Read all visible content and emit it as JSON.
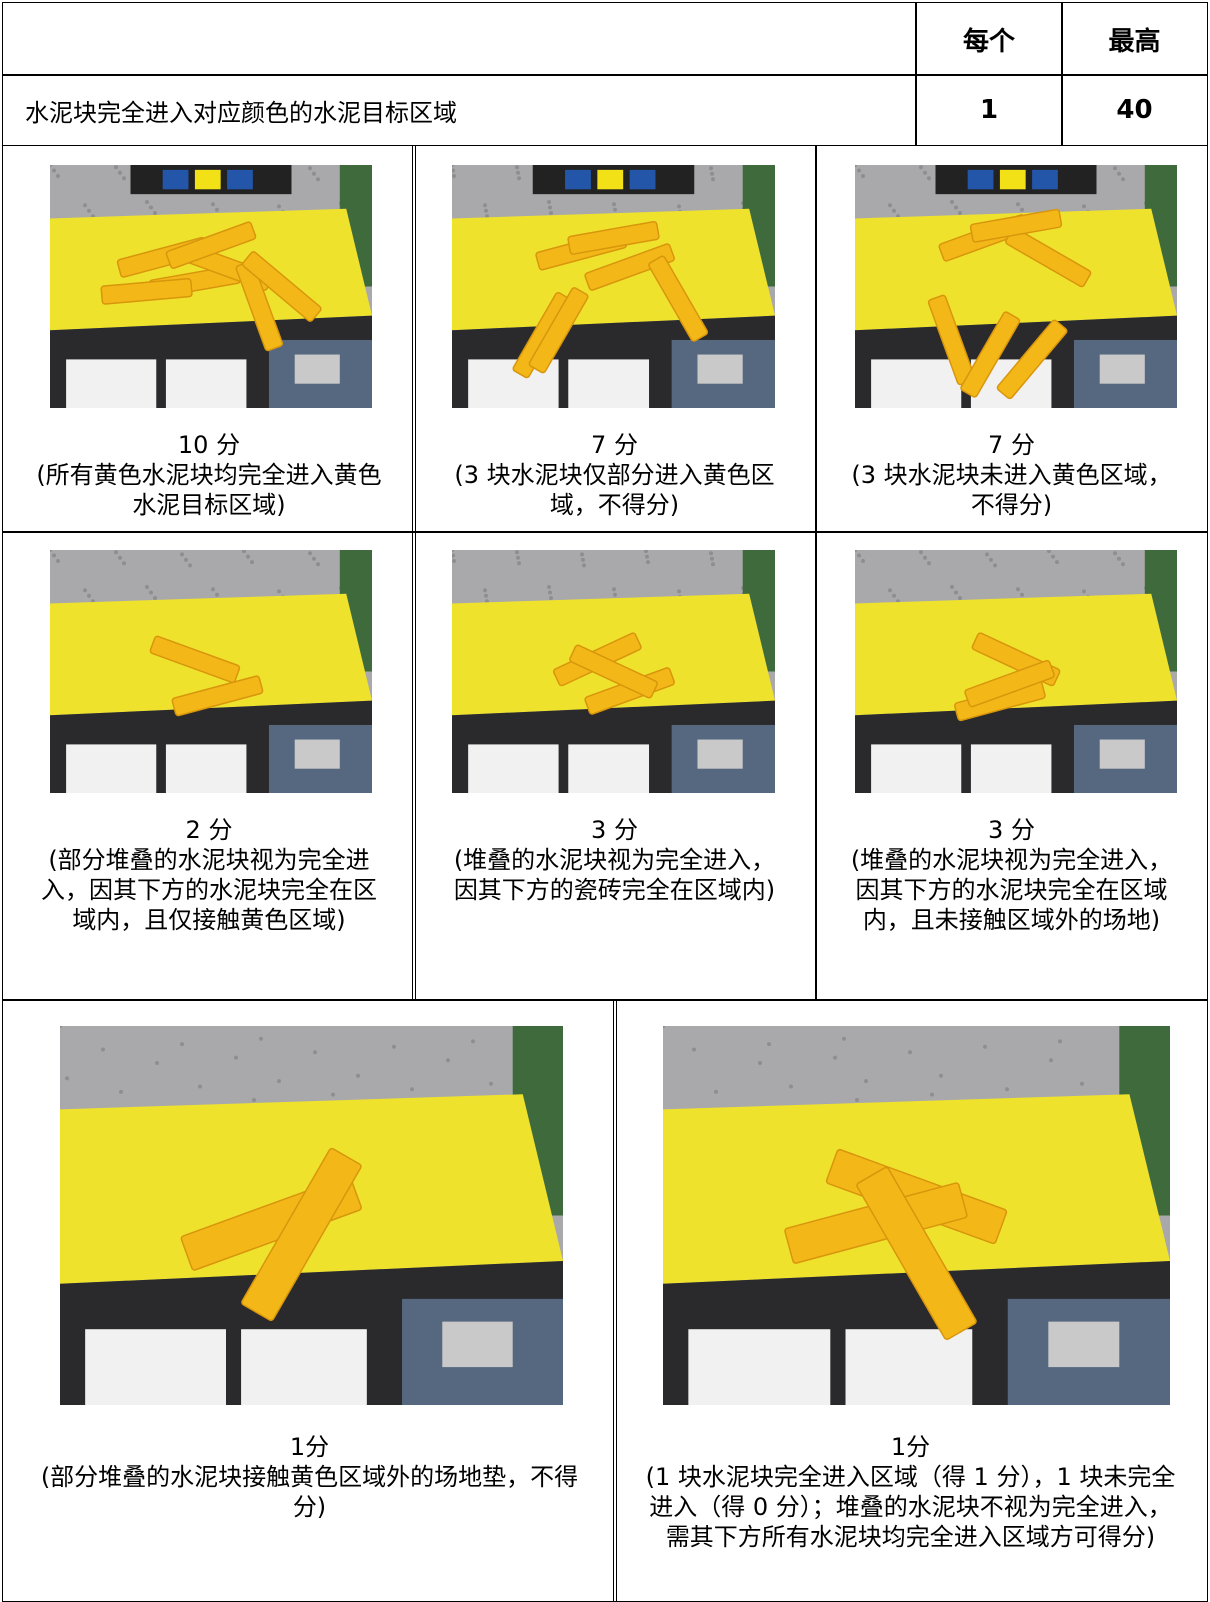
{
  "table": {
    "header": [
      "每个",
      "最高"
    ],
    "rows": [
      {
        "criterion": "水泥块完全进入对应颜色的水泥目标区域",
        "each": 1,
        "max": 40
      }
    ]
  },
  "examples": [
    {
      "score": "10 分",
      "note": "(所有黄色水泥块均完全进入黄色水泥目标区域)"
    },
    {
      "score": "7 分",
      "note": "(3 块水泥块仅部分进入黄色区域，不得分)"
    },
    {
      "score": "7 分",
      "note": "(3 块水泥块未进入黄色区域，不得分)"
    },
    {
      "score": "2 分",
      "note": "(部分堆叠的水泥块视为完全进入，因其下方的水泥块完全在区域内，且仅接触黄色区域)"
    },
    {
      "score": "3 分",
      "note": "(堆叠的水泥块视为完全进入，因其下方的瓷砖完全在区域内)"
    },
    {
      "score": "3 分",
      "note": "(堆叠的水泥块视为完全进入，因其下方的水泥块完全在区域内，且未接触区域外的场地)"
    },
    {
      "score": "1分",
      "note": "(部分堆叠的水泥块接触黄色区域外的场地垫，不得分)"
    },
    {
      "score": "1分",
      "note": "(1 块水泥块完全进入区域（得 1 分），1 块未完全进入（得 0 分）；堆叠的水泥块不视为完全进入，需其下方所有水泥块均完全进入区域方可得分)"
    }
  ]
}
